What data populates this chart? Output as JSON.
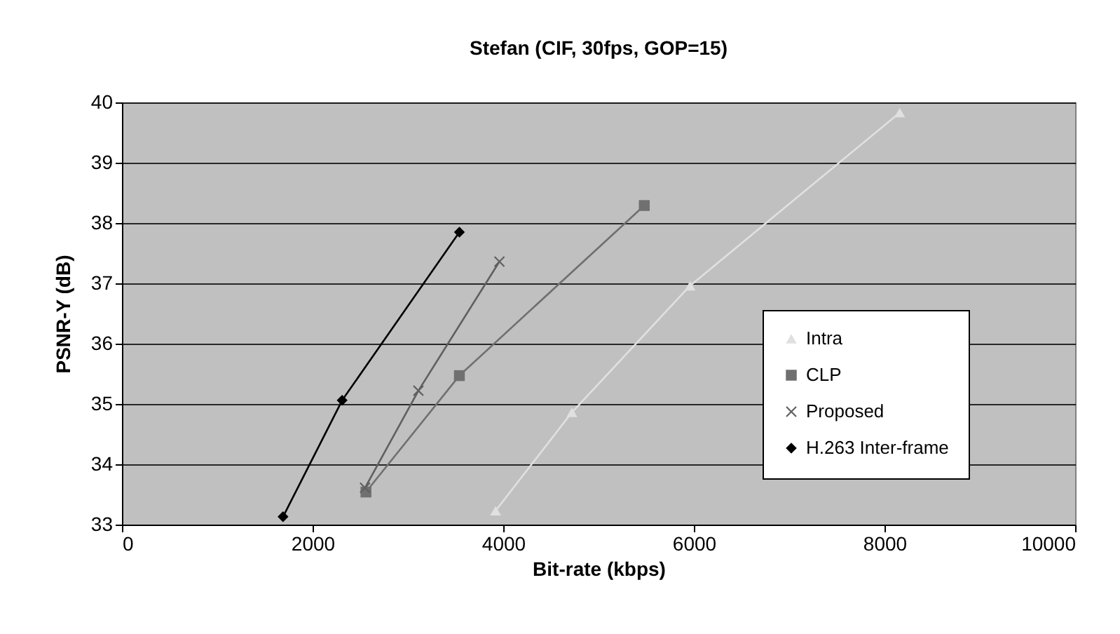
{
  "chart_data": {
    "type": "line",
    "title": "Stefan (CIF, 30fps, GOP=15)",
    "xlabel": "Bit-rate (kbps)",
    "ylabel": "PSNR-Y (dB)",
    "xlim": [
      0,
      10000
    ],
    "xticks": [
      0,
      2000,
      4000,
      6000,
      8000,
      10000
    ],
    "ylim": [
      33,
      40
    ],
    "yticks": [
      33,
      34,
      35,
      36,
      37,
      38,
      39,
      40
    ],
    "grid": "y",
    "legend": "bottom right",
    "series": [
      {
        "name": "Intra",
        "color": "#e0e0e0",
        "marker": "triangle",
        "x": [
          3920,
          4720,
          5960,
          8160
        ],
        "values": [
          33.23,
          34.86,
          36.96,
          39.83
        ]
      },
      {
        "name": "CLP",
        "color": "#707070",
        "marker": "square",
        "x": [
          2560,
          3540,
          5480
        ],
        "values": [
          33.54,
          35.47,
          38.29
        ]
      },
      {
        "name": "Proposed",
        "color": "#606060",
        "marker": "cross",
        "x": [
          2550,
          3110,
          3960
        ],
        "values": [
          33.61,
          35.22,
          37.36
        ]
      },
      {
        "name": "H.263 Inter-frame",
        "color": "#000000",
        "marker": "diamond",
        "x": [
          1690,
          2310,
          3540
        ],
        "values": [
          33.13,
          35.06,
          37.85
        ]
      }
    ]
  }
}
